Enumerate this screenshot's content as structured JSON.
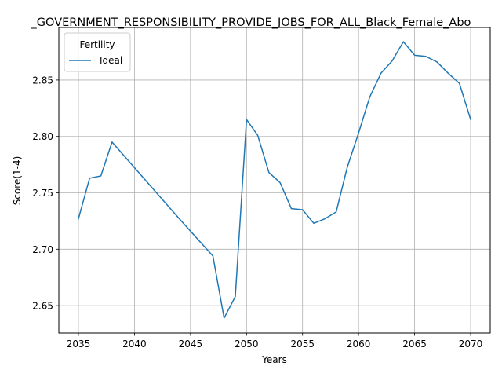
{
  "chart_data": {
    "type": "line",
    "title": "_GOVERNMENT_RESPONSIBILITY_PROVIDE_JOBS_FOR_ALL_Black_Female_Abo",
    "xlabel": "Years",
    "ylabel": "Score(1-4)",
    "xlim": [
      2033.25,
      2071.75
    ],
    "ylim": [
      2.6257,
      2.8966
    ],
    "xticks": [
      2035,
      2040,
      2045,
      2050,
      2055,
      2060,
      2065,
      2070
    ],
    "yticks": [
      2.65,
      2.7,
      2.75,
      2.8,
      2.85
    ],
    "grid": true,
    "legend": {
      "title": "Fertility",
      "placement": "top-left"
    },
    "series": [
      {
        "name": "Ideal",
        "color": "#1f77b4",
        "x": [
          2035,
          2036,
          2037,
          2038,
          2044,
          2047,
          2048,
          2049,
          2050,
          2051,
          2052,
          2053,
          2054,
          2055,
          2056,
          2057,
          2058,
          2059,
          2060,
          2061,
          2062,
          2063,
          2064,
          2065,
          2066,
          2067,
          2068,
          2069,
          2070
        ],
        "y": [
          2.727,
          2.763,
          2.765,
          2.795,
          2.727,
          2.694,
          2.639,
          2.658,
          2.815,
          2.801,
          2.768,
          2.759,
          2.736,
          2.735,
          2.723,
          2.727,
          2.733,
          2.773,
          2.803,
          2.835,
          2.856,
          2.867,
          2.884,
          2.872,
          2.871,
          2.866,
          2.856,
          2.847,
          2.815
        ]
      }
    ]
  }
}
